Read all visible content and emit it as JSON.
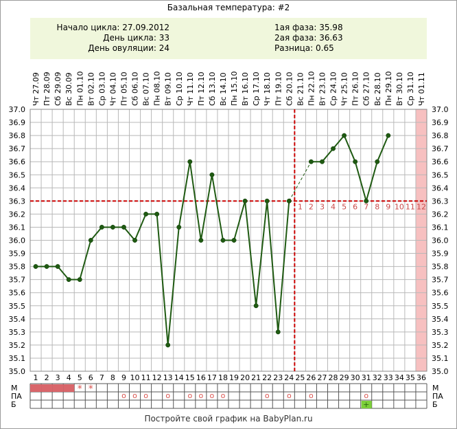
{
  "title": "Базальная температура: #2",
  "info": {
    "cycle_start": "Начало цикла: 27.09.2012",
    "cycle_day": "День цикла: 33",
    "ovulation_day": "День овуляции: 24",
    "phase1": "1ая фаза: 35.98",
    "phase2": "2ая фаза: 36.63",
    "difference": "Разница: 0.65"
  },
  "footer": "Постройте свой график на BabyPlan.ru",
  "colors": {
    "line": "#1f5a12",
    "dot": "#1f5a12",
    "coverline": "#cc0000",
    "grid": "#b8b8b8",
    "last_day_band": "#f7c0c0",
    "menses": "#d9666b",
    "green_mark": "#7ccf3a",
    "info_bg": "#f0f7dc"
  },
  "chart_data": {
    "type": "line",
    "days": [
      1,
      2,
      3,
      4,
      5,
      6,
      7,
      8,
      9,
      10,
      11,
      12,
      13,
      14,
      15,
      16,
      17,
      18,
      19,
      20,
      21,
      22,
      23,
      24,
      25,
      26,
      27,
      28,
      29,
      30,
      31,
      32,
      33,
      34,
      35,
      36
    ],
    "dates": [
      "Чт 27.09",
      "Пт 28.09",
      "Сб 29.09",
      "Вс 30.09",
      "Пн 01.10",
      "Вт 02.10",
      "Ср 03.10",
      "Чт 04.10",
      "Пт 05.10",
      "Сб 06.10",
      "Вс 07.10",
      "Пн 08.10",
      "Вт 09.10",
      "Ср 10.10",
      "Чт 11.10",
      "Пт 12.10",
      "Сб 13.10",
      "Вс 14.10",
      "Пн 15.10",
      "Вт 16.10",
      "Ср 17.10",
      "Чт 18.10",
      "Пт 19.10",
      "Сб 20.10",
      "Вс 21.10",
      "Пн 22.10",
      "Вт 23.10",
      "Ср 24.10",
      "Чт 25.10",
      "Пт 26.10",
      "Сб 27.10",
      "Вс 28.10",
      "Пн 29.10",
      "Вт 30.10",
      "Ср 31.10",
      "Чт 01.11"
    ],
    "temperatures": [
      35.8,
      35.8,
      35.8,
      35.7,
      35.7,
      36.0,
      36.1,
      36.1,
      36.1,
      36.0,
      36.2,
      36.2,
      35.2,
      36.1,
      36.6,
      36.0,
      36.5,
      36.0,
      36.0,
      36.3,
      35.5,
      36.3,
      35.3,
      36.3,
      null,
      36.6,
      36.6,
      36.7,
      36.8,
      36.6,
      36.3,
      36.6,
      36.8,
      null,
      null,
      null
    ],
    "ylim": [
      35.0,
      37.0
    ],
    "ytick_step": 0.1,
    "yticks": [
      "35.0",
      "35.1",
      "35.2",
      "35.3",
      "35.4",
      "35.5",
      "35.6",
      "35.7",
      "35.8",
      "35.9",
      "36.0",
      "36.1",
      "36.2",
      "36.3",
      "36.4",
      "36.5",
      "36.6",
      "36.7",
      "36.8",
      "36.9",
      "37.0"
    ],
    "coverline": 36.3,
    "ovulation_day": 24,
    "post_ovulation_labels": [
      "1",
      "2",
      "3",
      "4",
      "5",
      "6",
      "7",
      "8",
      "9",
      "10",
      "11",
      "12"
    ],
    "highlight_day": 36,
    "grid": true,
    "rows": [
      {
        "label": "М",
        "menses_days": [
          1,
          2,
          3,
          4
        ],
        "star_days": [
          5,
          6
        ],
        "star": "*"
      },
      {
        "label": "ПА",
        "circle_days": [
          9,
          10,
          11,
          13,
          15,
          16,
          17,
          18,
          22,
          24,
          26,
          31
        ],
        "circle": "o"
      },
      {
        "label": "Б",
        "green_days": [
          31
        ],
        "green": "+"
      }
    ]
  }
}
